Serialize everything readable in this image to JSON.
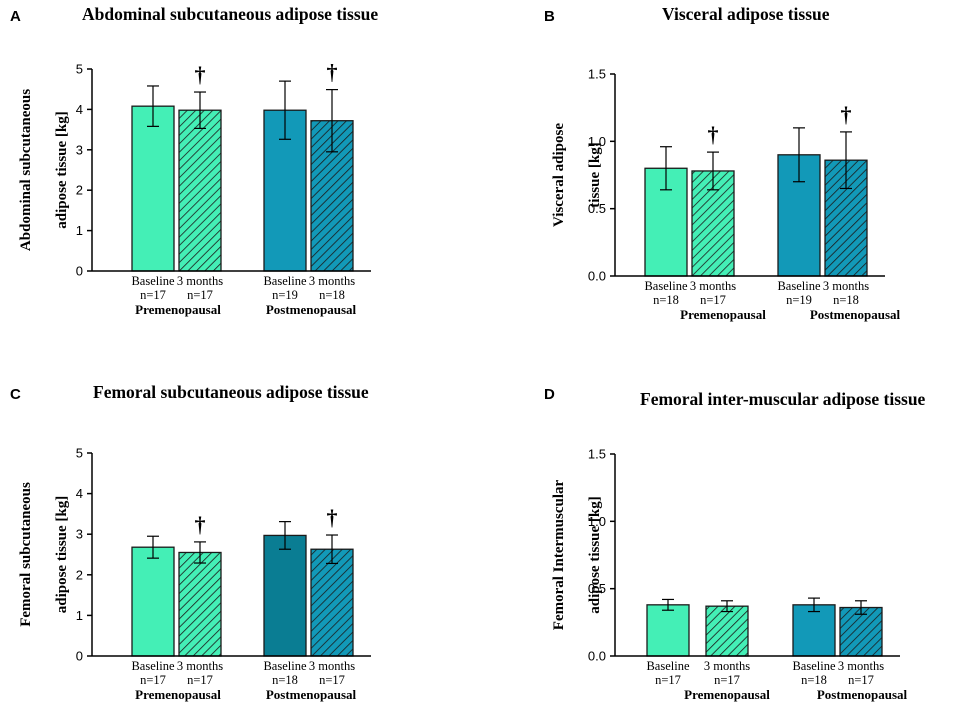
{
  "colors": {
    "pre": "#44efb6",
    "post": "#1299b8",
    "post_dark": "#0a7d93"
  },
  "chart_data": [
    {
      "panel": "A",
      "type": "bar",
      "title": "Abdominal subcutaneous adipose tissue",
      "ylabel": [
        "Abdominal subcutaneous",
        "adipose tissue [kg]"
      ],
      "ylim": [
        0,
        5
      ],
      "yticks": [
        "0",
        "1",
        "2",
        "3",
        "4",
        "5"
      ],
      "groups": [
        "Premenopausal",
        "Postmenopausal"
      ],
      "bars": [
        {
          "label": "Baseline",
          "n": "n=17",
          "group": "Premenopausal",
          "value": 4.08,
          "err": 0.5,
          "pattern": "solid",
          "dagger": ""
        },
        {
          "label": "3 months",
          "n": "n=17",
          "group": "Premenopausal",
          "value": 3.98,
          "err": 0.45,
          "pattern": "hatched",
          "dagger": "†"
        },
        {
          "label": "Baseline",
          "n": "n=19",
          "group": "Postmenopausal",
          "value": 3.98,
          "err": 0.72,
          "pattern": "solid",
          "dagger": ""
        },
        {
          "label": "3 months",
          "n": "n=18",
          "group": "Postmenopausal",
          "value": 3.72,
          "err": 0.77,
          "pattern": "hatched",
          "dagger": "†"
        }
      ]
    },
    {
      "panel": "B",
      "type": "bar",
      "title": "Visceral adipose tissue",
      "ylabel": [
        "Visceral adipose",
        "tissue [kg]"
      ],
      "ylim": [
        0,
        1.5
      ],
      "yticks": [
        "0.0",
        "0.5",
        "1.0",
        "1.5"
      ],
      "groups": [
        "Premenopausal",
        "Postmenopausal"
      ],
      "bars": [
        {
          "label": "Baseline",
          "n": "n=18",
          "group": "Premenopausal",
          "value": 0.8,
          "err": 0.16,
          "pattern": "solid",
          "dagger": ""
        },
        {
          "label": "3 months",
          "n": "n=17",
          "group": "Premenopausal",
          "value": 0.78,
          "err": 0.14,
          "pattern": "hatched",
          "dagger": "†"
        },
        {
          "label": "Baseline",
          "n": "n=19",
          "group": "Postmenopausal",
          "value": 0.9,
          "err": 0.2,
          "pattern": "solid",
          "dagger": ""
        },
        {
          "label": "3 months",
          "n": "n=18",
          "group": "Postmenopausal",
          "value": 0.86,
          "err": 0.21,
          "pattern": "hatched",
          "dagger": "†"
        }
      ]
    },
    {
      "panel": "C",
      "type": "bar",
      "title": "Femoral subcutaneous adipose tissue",
      "ylabel": [
        "Femoral subcutaneous",
        "adipose tissue [kg]"
      ],
      "ylim": [
        0,
        5
      ],
      "yticks": [
        "0",
        "1",
        "2",
        "3",
        "4",
        "5"
      ],
      "groups": [
        "Premenopausal",
        "Postmenopausal"
      ],
      "bars": [
        {
          "label": "Baseline",
          "n": "n=17",
          "group": "Premenopausal",
          "value": 2.68,
          "err": 0.27,
          "pattern": "solid",
          "dagger": ""
        },
        {
          "label": "3 months",
          "n": "n=17",
          "group": "Premenopausal",
          "value": 2.55,
          "err": 0.26,
          "pattern": "hatched",
          "dagger": "†"
        },
        {
          "label": "Baseline",
          "n": "n=18",
          "group": "Postmenopausal",
          "value": 2.97,
          "err": 0.34,
          "pattern": "solid_dark",
          "dagger": ""
        },
        {
          "label": "3 months",
          "n": "n=17",
          "group": "Postmenopausal",
          "value": 2.63,
          "err": 0.35,
          "pattern": "hatched",
          "dagger": "†"
        }
      ]
    },
    {
      "panel": "D",
      "type": "bar",
      "title": "Femoral inter-muscular adipose tissue",
      "ylabel": [
        "Femoral Intermuscular",
        "adipose tissue [kg]"
      ],
      "ylim": [
        0,
        1.5
      ],
      "yticks": [
        "0.0",
        "0.5",
        "1.0",
        "1.5"
      ],
      "groups": [
        "Premenopausal",
        "Postmenopausal"
      ],
      "bars": [
        {
          "label": "Baseline",
          "n": "n=17",
          "group": "Premenopausal",
          "value": 0.38,
          "err": 0.04,
          "pattern": "solid",
          "dagger": ""
        },
        {
          "label": "3 months",
          "n": "n=17",
          "group": "Premenopausal",
          "value": 0.37,
          "err": 0.04,
          "pattern": "hatched",
          "dagger": ""
        },
        {
          "label": "Baseline",
          "n": "n=18",
          "group": "Postmenopausal",
          "value": 0.38,
          "err": 0.05,
          "pattern": "solid",
          "dagger": ""
        },
        {
          "label": "3 months",
          "n": "n=17",
          "group": "Postmenopausal",
          "value": 0.36,
          "err": 0.05,
          "pattern": "hatched",
          "dagger": ""
        }
      ]
    }
  ]
}
